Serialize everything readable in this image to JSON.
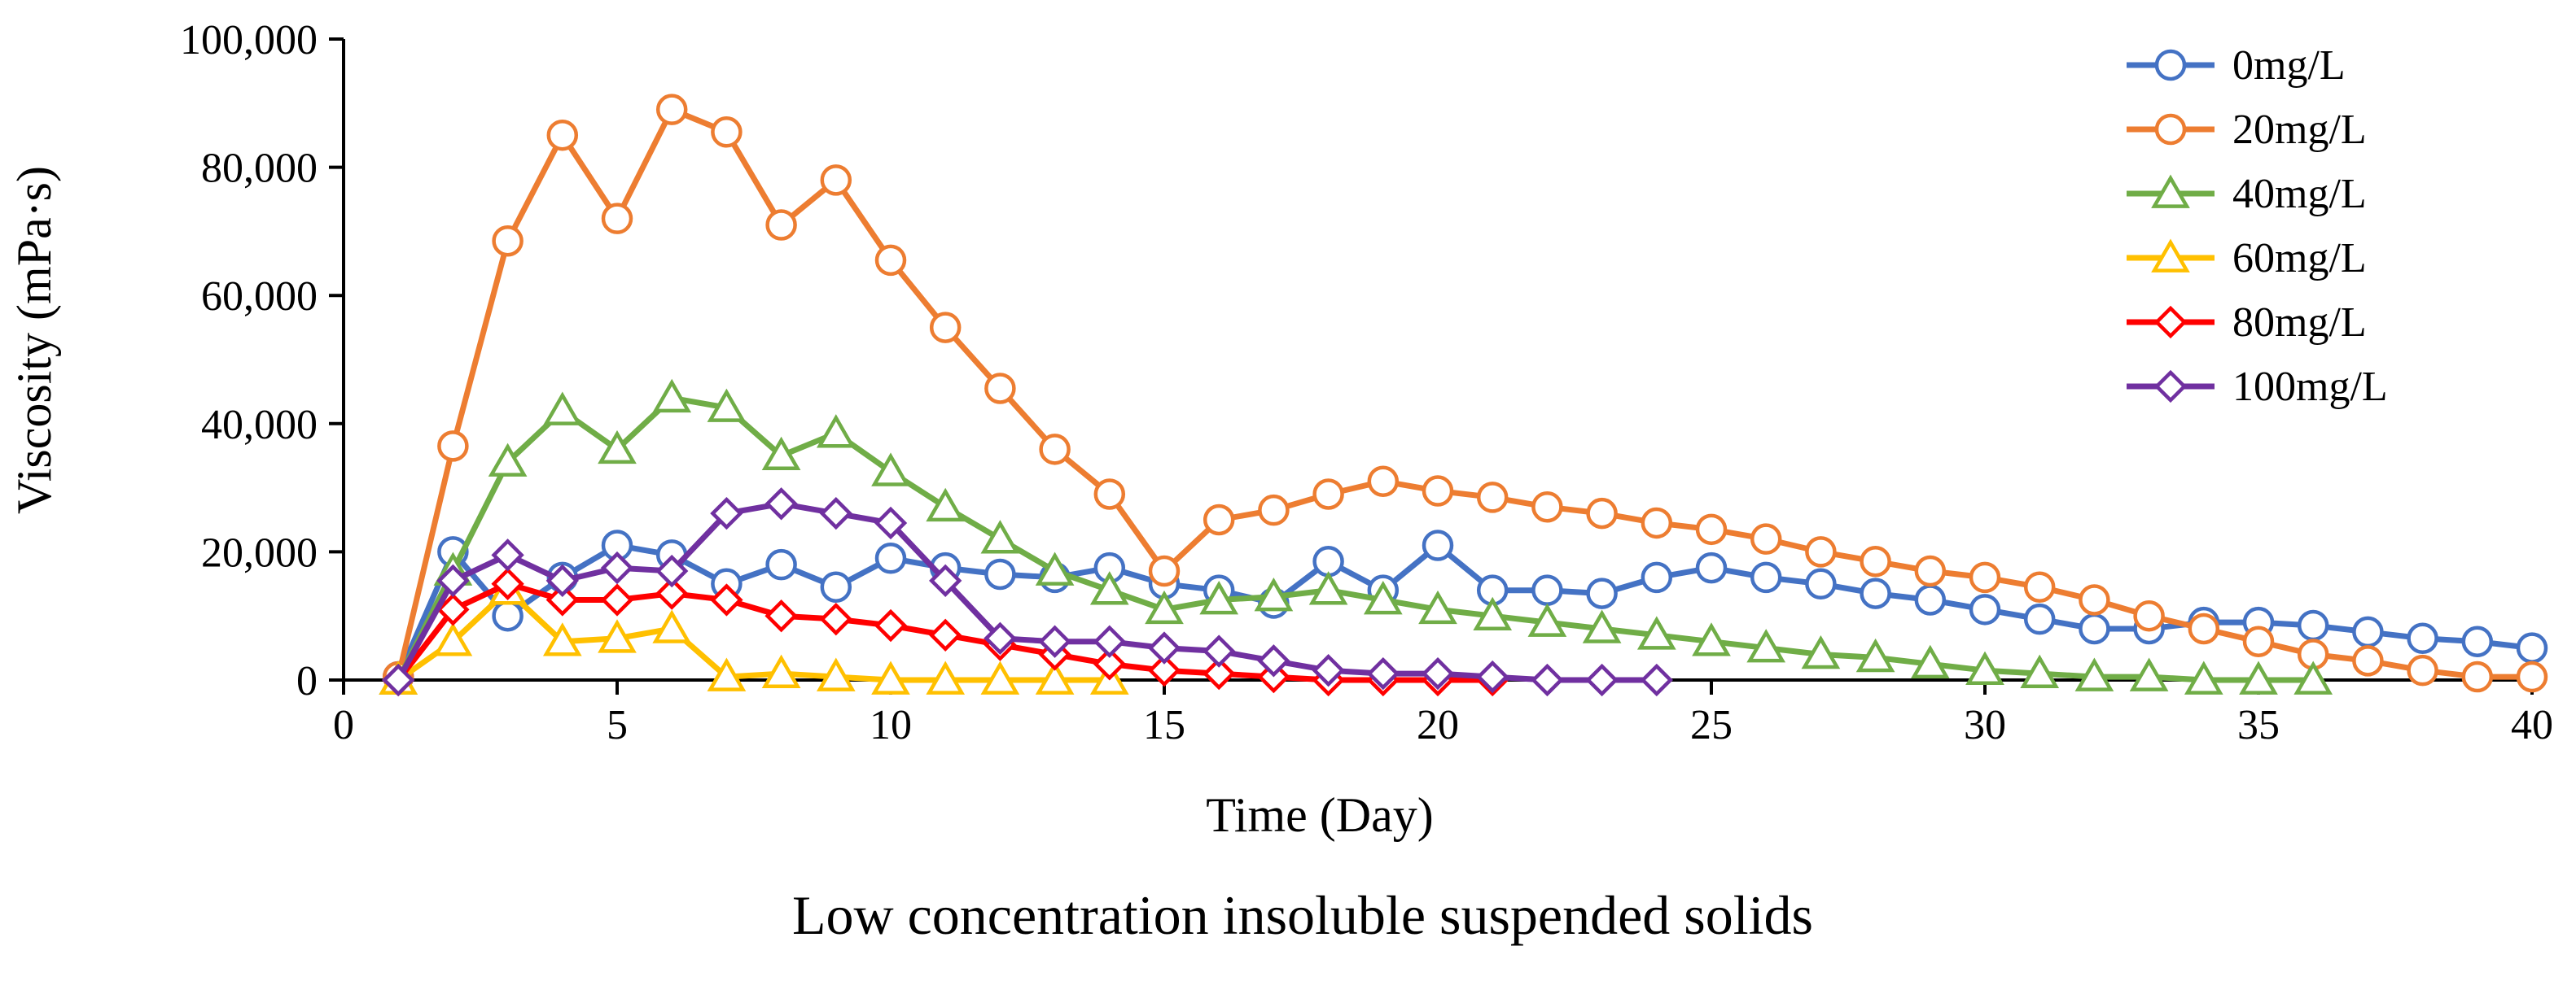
{
  "chart_data": {
    "type": "line",
    "title": "",
    "caption": "Low concentration insoluble suspended solids",
    "xlabel": "Time (Day)",
    "ylabel": "Viscosity (mPa·s)",
    "xlim": [
      0,
      40
    ],
    "ylim": [
      0,
      100000
    ],
    "xticks": [
      0,
      5,
      10,
      15,
      20,
      25,
      30,
      35,
      40
    ],
    "xtick_labels": [
      "0",
      "5",
      "10",
      "15",
      "20",
      "25",
      "30",
      "35",
      "40"
    ],
    "yticks": [
      0,
      20000,
      40000,
      60000,
      80000,
      100000
    ],
    "ytick_labels": [
      "0",
      "20,000",
      "40,000",
      "60,000",
      "80,000",
      "100,000"
    ],
    "grid": false,
    "legend_position": "top-right",
    "series": [
      {
        "name": "0mg/L",
        "color": "#4472C4",
        "marker": "circle",
        "x": [
          1,
          2,
          3,
          4,
          5,
          6,
          7,
          8,
          9,
          10,
          11,
          12,
          13,
          14,
          15,
          16,
          17,
          18,
          19,
          20,
          21,
          22,
          23,
          24,
          25,
          26,
          27,
          28,
          29,
          30,
          31,
          32,
          33,
          34,
          35,
          36,
          37,
          38,
          39,
          40
        ],
        "y": [
          500,
          20000,
          10000,
          16000,
          21000,
          19500,
          15000,
          18000,
          14500,
          19000,
          17500,
          16500,
          16000,
          17500,
          15000,
          14000,
          12000,
          18500,
          14000,
          21000,
          14000,
          14000,
          13500,
          16000,
          17500,
          16000,
          15000,
          13500,
          12500,
          11000,
          9500,
          8000,
          8000,
          9000,
          9000,
          8500,
          7500,
          6500,
          6000,
          5000
        ]
      },
      {
        "name": "20mg/L",
        "color": "#ED7D31",
        "marker": "circle",
        "x": [
          1,
          2,
          3,
          4,
          5,
          6,
          7,
          8,
          9,
          10,
          11,
          12,
          13,
          14,
          15,
          16,
          17,
          18,
          19,
          20,
          21,
          22,
          23,
          24,
          25,
          26,
          27,
          28,
          29,
          30,
          31,
          32,
          33,
          34,
          35,
          36,
          37,
          38,
          39,
          40
        ],
        "y": [
          500,
          36500,
          68500,
          85000,
          72000,
          89000,
          85500,
          71000,
          78000,
          65500,
          55000,
          45500,
          36000,
          29000,
          17000,
          25000,
          26500,
          29000,
          31000,
          29500,
          28500,
          27000,
          26000,
          24500,
          23500,
          22000,
          20000,
          18500,
          17000,
          16000,
          14500,
          12500,
          10000,
          8000,
          6000,
          4000,
          3000,
          1500,
          500,
          500
        ]
      },
      {
        "name": "40mg/L",
        "color": "#70AD47",
        "marker": "triangle",
        "x": [
          1,
          2,
          3,
          4,
          5,
          6,
          7,
          8,
          9,
          10,
          11,
          12,
          13,
          14,
          15,
          16,
          17,
          18,
          19,
          20,
          21,
          22,
          23,
          24,
          25,
          26,
          27,
          28,
          29,
          30,
          31,
          32,
          33,
          34,
          35,
          36
        ],
        "y": [
          0,
          17000,
          34000,
          42000,
          36000,
          44000,
          42500,
          35000,
          38500,
          32500,
          27000,
          22000,
          17000,
          14000,
          11000,
          12500,
          13000,
          14000,
          12500,
          11000,
          10000,
          9000,
          8000,
          7000,
          6000,
          5000,
          4000,
          3500,
          2500,
          1500,
          1000,
          500,
          500,
          0,
          0,
          0
        ]
      },
      {
        "name": "60mg/L",
        "color": "#FFC000",
        "marker": "triangle",
        "x": [
          1,
          2,
          3,
          4,
          5,
          6,
          7,
          8,
          9,
          10,
          11,
          12,
          13,
          14
        ],
        "y": [
          0,
          6000,
          14000,
          6000,
          6500,
          8000,
          500,
          1000,
          500,
          0,
          0,
          0,
          0,
          0
        ]
      },
      {
        "name": "80mg/L",
        "color": "#FF0000",
        "marker": "diamond",
        "x": [
          1,
          2,
          3,
          4,
          5,
          6,
          7,
          8,
          9,
          10,
          11,
          12,
          13,
          14,
          15,
          16,
          17,
          18,
          19,
          20,
          21
        ],
        "y": [
          0,
          11000,
          15000,
          12500,
          12500,
          13500,
          12500,
          10000,
          9500,
          8500,
          7000,
          5500,
          4000,
          2500,
          1500,
          1000,
          500,
          0,
          0,
          0,
          0
        ]
      },
      {
        "name": "100mg/L",
        "color": "#7030A0",
        "marker": "diamond",
        "x": [
          1,
          2,
          3,
          4,
          5,
          6,
          7,
          8,
          9,
          10,
          11,
          12,
          13,
          14,
          15,
          16,
          17,
          18,
          19,
          20,
          21,
          22,
          23,
          24
        ],
        "y": [
          0,
          15500,
          19500,
          15500,
          17500,
          17000,
          26000,
          27500,
          26000,
          24500,
          15500,
          6500,
          6000,
          6000,
          5000,
          4500,
          3000,
          1500,
          1000,
          1000,
          500,
          0,
          0,
          0
        ]
      }
    ]
  }
}
